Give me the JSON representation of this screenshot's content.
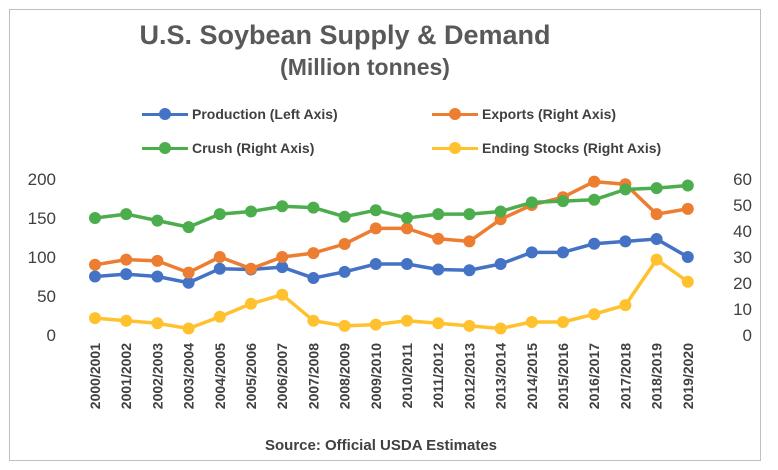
{
  "title": "U.S. Soybean Supply & Demand",
  "subtitle": "(Million tonnes)",
  "source": "Source: Official USDA Estimates",
  "legend": [
    {
      "label": "Production (Left Axis)",
      "color": "#4472c4"
    },
    {
      "label": "Exports (Right Axis)",
      "color": "#ed7d31"
    },
    {
      "label": "Crush (Right Axis)",
      "color": "#4cad4c"
    },
    {
      "label": "Ending Stocks (Right Axis)",
      "color": "#ffc22e"
    }
  ],
  "chart_data": {
    "type": "line",
    "title": "U.S. Soybean Supply & Demand",
    "subtitle": "(Million tonnes)",
    "categories": [
      "2000/2001",
      "2001/2002",
      "2002/2003",
      "2003/2004",
      "2004/2005",
      "2005/2006",
      "2006/2007",
      "2007/2008",
      "2008/2009",
      "2009/2010",
      "2010/2011",
      "2011/2012",
      "2012/2013",
      "2013/2014",
      "2014/2015",
      "2015/2016",
      "2016/2017",
      "2017/2018",
      "2018/2019",
      "2019/2020"
    ],
    "left_axis": {
      "ylim": [
        0,
        200
      ],
      "ticks": [
        0,
        50,
        100,
        150,
        200
      ]
    },
    "right_axis": {
      "ylim": [
        0,
        60
      ],
      "ticks": [
        0,
        10,
        20,
        30,
        40,
        50,
        60
      ]
    },
    "grid": false,
    "legend_position": "top",
    "series": [
      {
        "name": "Production (Left Axis)",
        "axis": "left",
        "color": "#4472c4",
        "values": [
          75,
          78,
          75,
          67,
          85,
          84,
          87,
          73,
          81,
          91,
          91,
          84,
          83,
          91,
          106,
          106,
          117,
          120,
          123,
          100
        ]
      },
      {
        "name": "Exports (Right Axis)",
        "axis": "right",
        "color": "#ed7d31",
        "values": [
          27,
          29,
          28.5,
          24,
          30,
          25.5,
          30,
          31.5,
          35,
          41,
          41,
          37,
          36,
          44.5,
          50,
          53,
          59,
          58,
          46.5,
          48.5
        ]
      },
      {
        "name": "Crush (Right Axis)",
        "axis": "right",
        "color": "#4cad4c",
        "values": [
          45,
          46.5,
          44,
          41.5,
          46.5,
          47.5,
          49.5,
          49,
          45.5,
          48,
          45,
          46.5,
          46.5,
          47.5,
          51,
          51.5,
          52,
          56,
          56.5,
          57.5
        ]
      },
      {
        "name": "Ending Stocks (Right Axis)",
        "axis": "right",
        "color": "#ffc22e",
        "values": [
          6.5,
          5.5,
          4.5,
          2.5,
          7,
          12,
          15.5,
          5.5,
          3.5,
          4,
          5.5,
          4.5,
          3.5,
          2.5,
          5,
          5,
          8,
          11.5,
          29,
          20.5
        ]
      }
    ]
  }
}
